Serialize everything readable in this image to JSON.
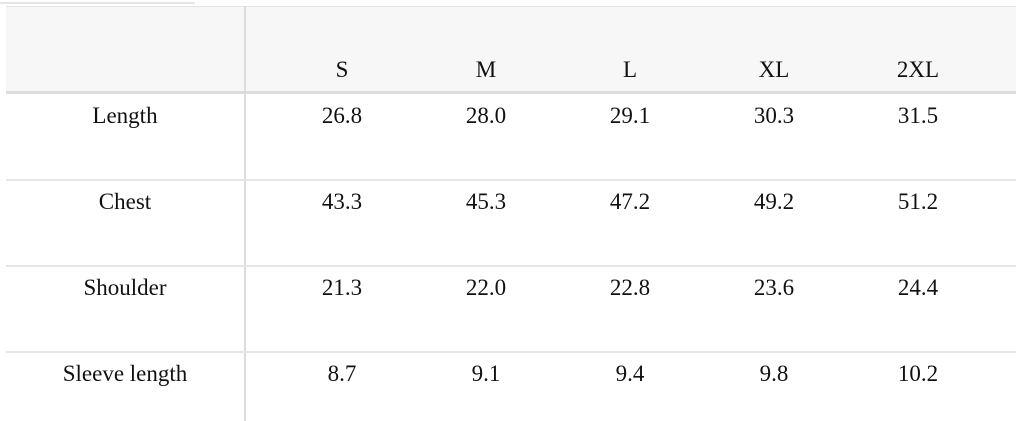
{
  "table": {
    "columns": [
      "S",
      "M",
      "L",
      "XL",
      "2XL"
    ],
    "rows": [
      {
        "label": "Length",
        "values": [
          "26.8",
          "28.0",
          "29.1",
          "30.3",
          "31.5"
        ]
      },
      {
        "label": "Chest",
        "values": [
          "43.3",
          "45.3",
          "47.2",
          "49.2",
          "51.2"
        ]
      },
      {
        "label": "Shoulder",
        "values": [
          "21.3",
          "22.0",
          "22.8",
          "23.6",
          "24.4"
        ]
      },
      {
        "label": "Sleeve length",
        "values": [
          "8.7",
          "9.1",
          "9.4",
          "9.8",
          "10.2"
        ]
      }
    ]
  }
}
